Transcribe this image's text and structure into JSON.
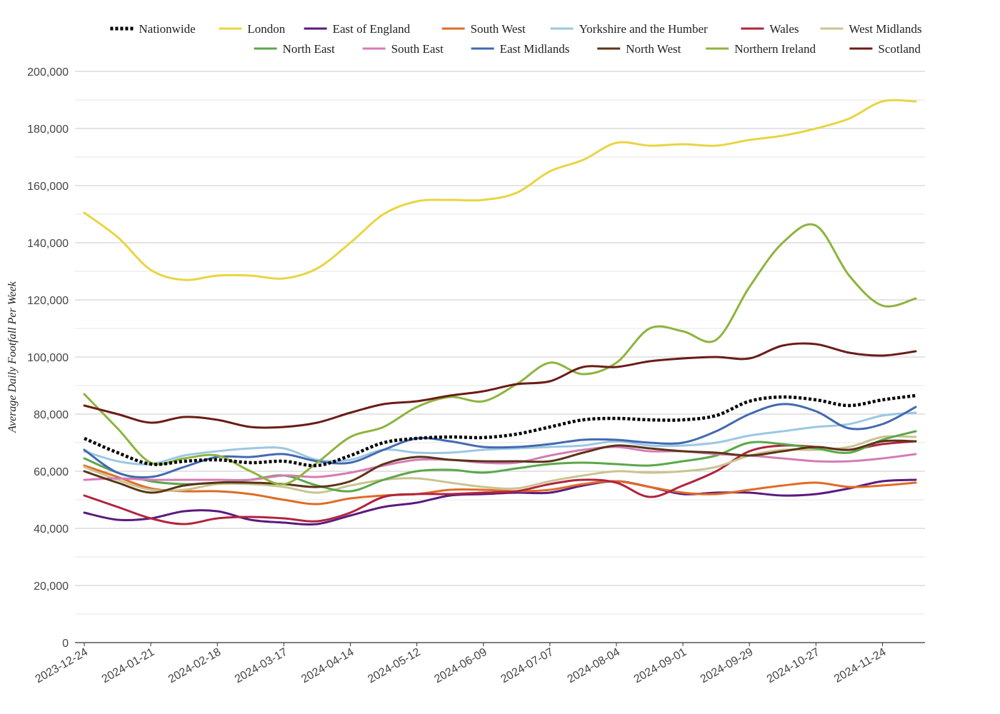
{
  "chart_data": {
    "type": "line",
    "ylabel": "Average Daily Footfall Per Week",
    "ylim": [
      0,
      200000
    ],
    "yticks": [
      0,
      20000,
      40000,
      60000,
      80000,
      100000,
      120000,
      140000,
      160000,
      180000,
      200000
    ],
    "ytick_labels": [
      "0",
      "20,000",
      "40,000",
      "60,000",
      "80,000",
      "100,000",
      "120,000",
      "140,000",
      "160,000",
      "180,000",
      "200,000"
    ],
    "x": [
      "2023-12-24",
      "2024-01-07",
      "2024-01-21",
      "2024-02-04",
      "2024-02-18",
      "2024-03-03",
      "2024-03-17",
      "2024-03-31",
      "2024-04-14",
      "2024-04-28",
      "2024-05-12",
      "2024-05-26",
      "2024-06-09",
      "2024-06-23",
      "2024-07-07",
      "2024-07-21",
      "2024-08-04",
      "2024-08-18",
      "2024-09-01",
      "2024-09-15",
      "2024-09-29",
      "2024-10-13",
      "2024-10-27",
      "2024-11-10",
      "2024-11-24",
      "2024-12-08"
    ],
    "grid": true,
    "legend_position": "top",
    "series": [
      {
        "name": "Nationwide",
        "color": "#000000",
        "dashed": true,
        "values": [
          71500,
          66500,
          62500,
          63500,
          64000,
          63000,
          63500,
          62000,
          65500,
          70000,
          71500,
          72000,
          71800,
          73000,
          75500,
          78000,
          78500,
          78000,
          78000,
          79500,
          84500,
          86000,
          85000,
          83000,
          85000,
          86500
        ]
      },
      {
        "name": "London",
        "color": "#e8d543",
        "values": [
          150500,
          142000,
          130500,
          127000,
          128500,
          128500,
          127500,
          131000,
          140000,
          150000,
          154500,
          155000,
          155000,
          157500,
          165000,
          169000,
          175000,
          174000,
          174500,
          174000,
          176000,
          177500,
          180000,
          183500,
          189500,
          189500
        ]
      },
      {
        "name": "East of England",
        "color": "#5b1a7e",
        "values": [
          45500,
          43000,
          43500,
          46000,
          46000,
          43000,
          42000,
          41500,
          44500,
          47500,
          49000,
          51500,
          52000,
          52500,
          52500,
          55000,
          56500,
          54500,
          52000,
          52500,
          52500,
          51500,
          52000,
          54000,
          56500,
          57000
        ]
      },
      {
        "name": "South West",
        "color": "#e06b26",
        "values": [
          62000,
          58000,
          54000,
          53000,
          53000,
          52000,
          50000,
          48500,
          50500,
          51500,
          52000,
          53500,
          53500,
          53000,
          53500,
          55500,
          56500,
          54500,
          52500,
          52000,
          53500,
          55000,
          56000,
          54500,
          55000,
          56000
        ]
      },
      {
        "name": "Yorkshire and the Humber",
        "color": "#9cc7e3",
        "values": [
          67000,
          63500,
          62500,
          65500,
          67000,
          68000,
          68000,
          64000,
          64000,
          67500,
          66500,
          66500,
          67500,
          68000,
          68500,
          69000,
          70500,
          69000,
          69000,
          70000,
          72500,
          74000,
          75500,
          76500,
          79500,
          80500
        ]
      },
      {
        "name": "Wales",
        "color": "#b0243e",
        "values": [
          51500,
          47500,
          43500,
          41500,
          43500,
          44000,
          43500,
          42500,
          45500,
          51000,
          52000,
          52000,
          52500,
          53000,
          55500,
          57000,
          56000,
          51000,
          55000,
          60000,
          67000,
          69000,
          68500,
          67500,
          69500,
          70500
        ]
      },
      {
        "name": "West Midlands",
        "color": "#c9c48f",
        "values": [
          61500,
          57000,
          53500,
          53500,
          55500,
          55500,
          54500,
          52500,
          55000,
          57000,
          57500,
          56000,
          54500,
          54000,
          56500,
          58500,
          60000,
          59500,
          60000,
          61500,
          65500,
          67500,
          67500,
          68500,
          72000,
          72000
        ]
      },
      {
        "name": "North East",
        "color": "#5aa84a",
        "values": [
          64500,
          59500,
          56500,
          55500,
          56000,
          57000,
          58500,
          55000,
          53000,
          57000,
          60000,
          60500,
          59500,
          61000,
          62500,
          63000,
          62500,
          62000,
          63500,
          65500,
          70000,
          69500,
          68000,
          66500,
          71000,
          74000
        ]
      },
      {
        "name": "South East",
        "color": "#d47cb6",
        "values": [
          57000,
          57500,
          57000,
          57000,
          57000,
          57000,
          58500,
          58000,
          59500,
          62000,
          64000,
          64000,
          63000,
          63000,
          65500,
          67500,
          68500,
          67000,
          67000,
          66000,
          65500,
          64500,
          63500,
          63500,
          64500,
          66000
        ]
      },
      {
        "name": "East Midlands",
        "color": "#4269b0",
        "values": [
          67500,
          59500,
          58000,
          61500,
          65000,
          65000,
          66000,
          63500,
          63000,
          67500,
          71500,
          70500,
          68500,
          68500,
          69500,
          71000,
          71000,
          70000,
          70000,
          74000,
          80000,
          83500,
          81000,
          75000,
          76500,
          82500
        ]
      },
      {
        "name": "North West",
        "color": "#5c3317",
        "values": [
          60000,
          56000,
          52500,
          55000,
          56000,
          56000,
          55500,
          54500,
          56500,
          62500,
          65000,
          64000,
          63500,
          63500,
          63500,
          66500,
          69000,
          68000,
          67000,
          66500,
          65500,
          67000,
          68500,
          67500,
          70500,
          70500
        ]
      },
      {
        "name": "Northern Ireland",
        "color": "#8db43e",
        "values": [
          87000,
          75000,
          63000,
          64500,
          65500,
          60000,
          55500,
          63000,
          72000,
          75500,
          82500,
          86000,
          84500,
          90500,
          98000,
          94000,
          98000,
          110000,
          109000,
          106000,
          124500,
          140000,
          146000,
          128500,
          118000,
          120500
        ]
      },
      {
        "name": "Scotland",
        "color": "#6b1c16",
        "values": [
          83000,
          80000,
          77000,
          79000,
          78000,
          75500,
          75500,
          77000,
          80500,
          83500,
          84500,
          86500,
          88000,
          90500,
          91500,
          96500,
          96500,
          98500,
          99500,
          100000,
          99500,
          104000,
          104500,
          101500,
          100500,
          102000
        ]
      }
    ]
  }
}
